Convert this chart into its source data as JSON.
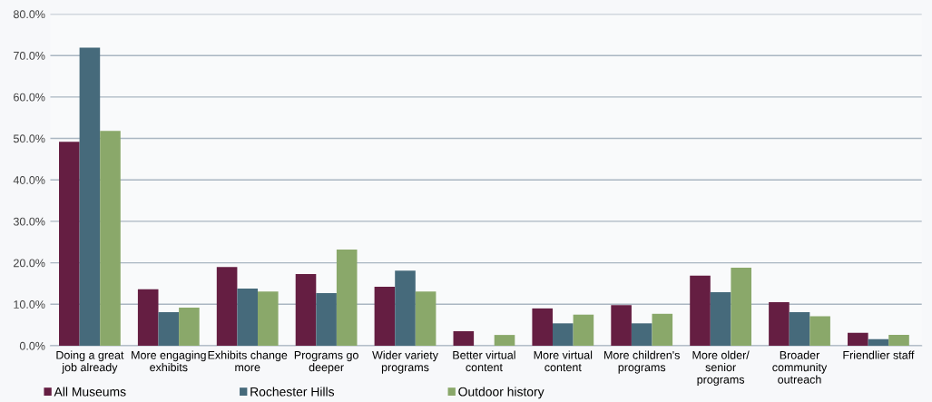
{
  "chart_data": {
    "type": "bar",
    "categories": [
      "Doing a great\njob already",
      "More engaging\nexhibits",
      "Exhibits change\nmore",
      "Programs go\ndeeper",
      "Wider variety\nprograms",
      "Better virtual\ncontent",
      "More virtual\ncontent",
      "More children's\nprograms",
      "More older/\nsenior\nprograms",
      "Broader\ncommunity\noutreach",
      "Friendlier staff"
    ],
    "series": [
      {
        "name": "All Museums",
        "color": "#651e42",
        "values": [
          49.2,
          13.6,
          19.0,
          17.3,
          14.2,
          3.5,
          9.0,
          9.8,
          16.9,
          10.5,
          3.1
        ]
      },
      {
        "name": "Rochester Hills",
        "color": "#466a7b",
        "values": [
          71.9,
          8.1,
          13.8,
          12.7,
          18.1,
          0,
          5.4,
          5.4,
          12.9,
          8.1,
          1.6
        ]
      },
      {
        "name": "Outdoor history",
        "color": "#8aa86a",
        "values": [
          51.8,
          9.2,
          13.1,
          23.2,
          13.1,
          2.6,
          7.5,
          7.7,
          18.8,
          7.1,
          2.6
        ]
      }
    ],
    "ylim": [
      0,
      80
    ],
    "yticks": [
      {
        "value": 0,
        "label": "0.0%"
      },
      {
        "value": 10,
        "label": "10.0%"
      },
      {
        "value": 20,
        "label": "20.0%"
      },
      {
        "value": 30,
        "label": "30.0%"
      },
      {
        "value": 40,
        "label": "40.0%"
      },
      {
        "value": 50,
        "label": "50.0%"
      },
      {
        "value": 60,
        "label": "60.0%"
      },
      {
        "value": 70,
        "label": "70.0%"
      },
      {
        "value": 80,
        "label": "80.0%"
      }
    ],
    "grid": "y",
    "legend": "bottom left"
  }
}
